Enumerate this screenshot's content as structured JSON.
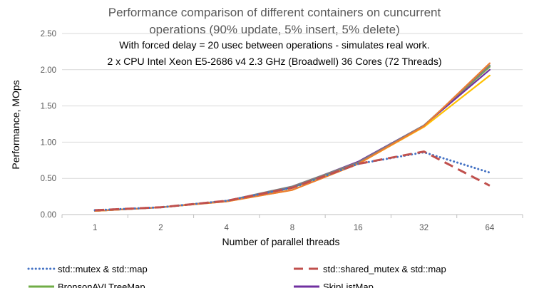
{
  "chart_data": {
    "type": "line",
    "title": "Performance  comparison of different containers on cuncurrent operations (90% update, 5% insert, 5% delete)",
    "title_lines": [
      "Performance  comparison of different containers on cuncurrent",
      "operations (90% update, 5% insert, 5% delete)"
    ],
    "subtitle_lines": [
      "With forced delay = 20 usec between operations - simulates real work.",
      "2 x CPU Intel Xeon E5-2686 v4 2.3 GHz (Broadwell) 36 Cores (72 Threads)"
    ],
    "xlabel": "Number of parallel threads",
    "ylabel": "Performance, MOps",
    "categories": [
      "1",
      "2",
      "4",
      "8",
      "16",
      "32",
      "64"
    ],
    "ylim": [
      0,
      2.5
    ],
    "yticks": [
      "0.00",
      "0.50",
      "1.00",
      "1.50",
      "2.00",
      "2.50"
    ],
    "grid": "horizontal",
    "legend_position": "bottom",
    "series": [
      {
        "name": "std::mutex & std::map",
        "color": "#4472C4",
        "dash": "dot",
        "values": [
          0.06,
          0.1,
          0.19,
          0.37,
          0.7,
          0.86,
          0.58
        ]
      },
      {
        "name": "std::shared_mutex & std::map",
        "color": "#C0504D",
        "dash": "dash",
        "values": [
          0.06,
          0.1,
          0.19,
          0.37,
          0.7,
          0.87,
          0.4
        ]
      },
      {
        "name": "BronsonAVLTreeMap",
        "color": "#70AD47",
        "dash": "solid",
        "values": [
          0.05,
          0.1,
          0.19,
          0.37,
          0.72,
          1.23,
          2.04
        ]
      },
      {
        "name": "SkipListMap",
        "color": "#7030A0",
        "dash": "solid",
        "values": [
          0.05,
          0.1,
          0.19,
          0.38,
          0.73,
          1.23,
          2.0
        ]
      },
      {
        "name": "",
        "color": "#7F7F7F",
        "dash": "solid",
        "values": [
          0.05,
          0.1,
          0.19,
          0.39,
          0.72,
          1.23,
          2.06
        ]
      },
      {
        "name": "",
        "color": "#FFC000",
        "dash": "solid",
        "values": [
          0.05,
          0.1,
          0.18,
          0.34,
          0.7,
          1.21,
          1.92
        ]
      },
      {
        "name": "",
        "color": "#ED7D31",
        "dash": "solid",
        "values": [
          0.05,
          0.1,
          0.18,
          0.34,
          0.7,
          1.22,
          2.09
        ]
      }
    ]
  }
}
